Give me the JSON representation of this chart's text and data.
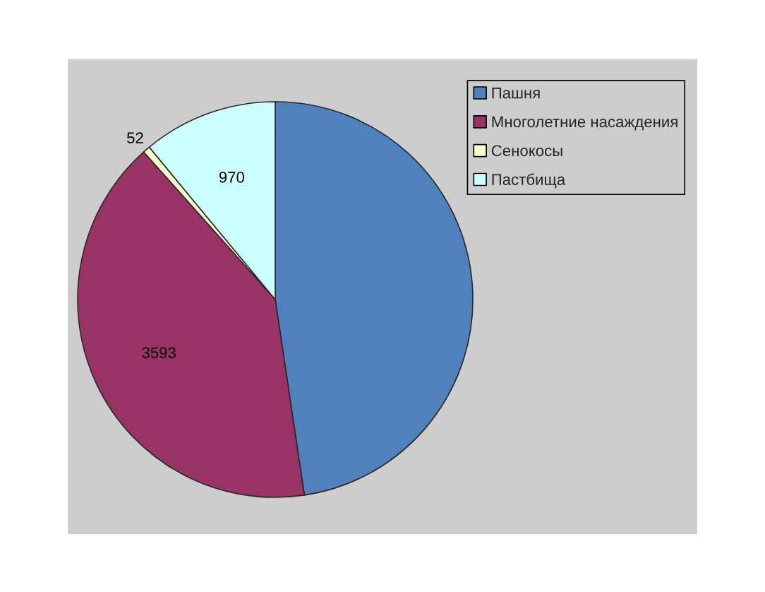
{
  "chart_data": {
    "type": "pie",
    "categories": [
      "Пашня",
      "Многолетние насаждения",
      "Сенокосы",
      "Пастбища"
    ],
    "values": [
      4200,
      3593,
      52,
      970
    ],
    "colors": [
      "#4f81bd",
      "#993366",
      "#ffffcc",
      "#ccffff"
    ],
    "value_labels": [
      null,
      "3593",
      "52",
      "970"
    ],
    "legend": "top right"
  }
}
